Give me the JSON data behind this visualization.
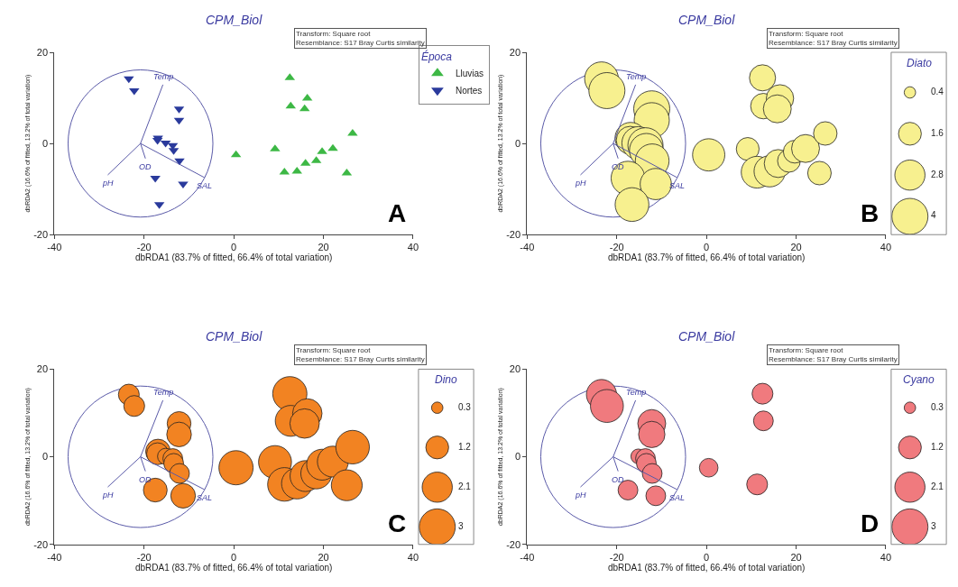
{
  "chart_data": [
    {
      "type": "scatter",
      "title": "CPM_Biol",
      "xlabel": "dbRDA1 (83.7% of fitted, 66.4% of total variation)",
      "ylabel": "dbRDA2 (16.6% of fitted, 13.2% of total variation)",
      "legend_title": "Época",
      "legend": "right",
      "xlim": [
        -40,
        40
      ],
      "xticks": [
        -40,
        -20,
        0,
        20,
        40
      ],
      "ylim": [
        -20,
        20
      ],
      "yticks": [
        -20,
        0,
        20
      ],
      "annotations": [
        "Transform: Square root\nResemblance: S17 Bray Curtis similarity",
        "A",
        {
          "text": "Temp",
          "x": -15.8,
          "y": 12.9
        },
        {
          "text": "pH",
          "x": -28.1,
          "y": -6.9
        },
        {
          "text": "OD",
          "x": -19.7,
          "y": -3.3
        },
        {
          "text": "SAL",
          "x": -6.5,
          "y": -7.5
        }
      ],
      "series": [
        {
          "name": "Lluvias",
          "color": "#3db845",
          "marker": "triangle",
          "x": [
            0.5,
            12.5,
            12.7,
            16.4,
            15.8,
            9.2,
            11.3,
            14.1,
            16.0,
            18.4,
            19.7,
            22.1,
            26.5,
            25.2
          ],
          "values": [
            -2.5,
            14.4,
            8.2,
            9.9,
            7.6,
            -1.2,
            -6.3,
            -6.1,
            -4.4,
            -3.8,
            -1.8,
            -1.1,
            2.2,
            -6.5
          ]
        },
        {
          "name": "Nortes",
          "color": "#2a3a9c",
          "marker": "triangle-down",
          "x": [
            -23.4,
            -22.2,
            -12.2,
            -12.2,
            -16.9,
            -17.0,
            -15.2,
            -13.6,
            -13.4,
            -12.1,
            -17.5,
            -11.3,
            -16.6
          ],
          "values": [
            14.2,
            11.6,
            7.6,
            5.1,
            1.2,
            0.7,
            0.1,
            -0.4,
            -1.5,
            -3.8,
            -7.6,
            -8.9,
            -13.4
          ]
        },
        {
          "type": "line",
          "color": "#5a5aa8",
          "x": [
            -20.8,
            -15.8
          ],
          "values": [
            0,
            12.9
          ]
        },
        {
          "type": "line",
          "color": "#5a5aa8",
          "x": [
            -20.8,
            -28.1
          ],
          "values": [
            0,
            -6.9
          ]
        },
        {
          "type": "line",
          "color": "#5a5aa8",
          "x": [
            -20.8,
            -19.7
          ],
          "values": [
            0,
            -3.3
          ]
        },
        {
          "type": "line",
          "color": "#5a5aa8",
          "x": [
            -20.8,
            -6.5
          ],
          "values": [
            0,
            -7.5
          ]
        }
      ]
    },
    {
      "type": "bubble",
      "title": "CPM_Biol",
      "xlabel": "dbRDA1 (83.7% of fitted, 66.4% of total variation)",
      "ylabel": "dbRDA2 (16.6% of fitted, 13.2% of total variation)",
      "legend_title": "Diato",
      "size_legend": [
        0.4,
        1.6,
        2.8,
        4
      ],
      "xlim": [
        -40,
        40
      ],
      "xticks": [
        -40,
        -20,
        0,
        20,
        40
      ],
      "ylim": [
        -20,
        20
      ],
      "yticks": [
        -20,
        0,
        20
      ],
      "annotations": [
        "Transform: Square root\nResemblance: S17 Bray Curtis similarity",
        "B",
        {
          "text": "Temp",
          "x": -15.8,
          "y": 12.9
        },
        {
          "text": "pH",
          "x": -28.1,
          "y": -6.9
        },
        {
          "text": "OD",
          "x": -19.7,
          "y": -3.3
        },
        {
          "text": "SAL",
          "x": -6.5,
          "y": -7.5
        }
      ],
      "series": [
        {
          "color": "#f7f08f",
          "x": [
            0.5,
            12.5,
            12.7,
            16.4,
            15.8,
            9.2,
            11.3,
            14.1,
            16.0,
            18.4,
            19.7,
            22.1,
            26.5,
            25.2,
            -23.4,
            -22.2,
            -12.2,
            -12.2,
            -16.9,
            -17.0,
            -15.2,
            -13.6,
            -13.4,
            -12.1,
            -17.5,
            -11.3,
            -16.6
          ],
          "values": [
            -2.5,
            14.4,
            8.2,
            9.9,
            7.6,
            -1.2,
            -6.3,
            -6.1,
            -4.4,
            -3.8,
            -1.8,
            -1.1,
            2.2,
            -6.5,
            14.2,
            11.6,
            7.6,
            5.1,
            1.2,
            0.7,
            0.1,
            -0.4,
            -1.5,
            -3.8,
            -7.6,
            -8.9,
            -13.4
          ],
          "sizes": [
            3.2,
            2.1,
            2.0,
            2.3,
            2.4,
            1.6,
            3.1,
            3.0,
            2.4,
            1.6,
            1.6,
            2.4,
            1.7,
            1.7,
            3.5,
            4.0,
            4.0,
            3.8,
            3.0,
            2.4,
            3.3,
            3.8,
            3.5,
            3.5,
            3.5,
            3.0,
            3.5
          ]
        },
        {
          "type": "line",
          "color": "#5a5aa8",
          "x": [
            -20.8,
            -15.8
          ],
          "values": [
            0,
            12.9
          ]
        },
        {
          "type": "line",
          "color": "#5a5aa8",
          "x": [
            -20.8,
            -28.1
          ],
          "values": [
            0,
            -6.9
          ]
        },
        {
          "type": "line",
          "color": "#5a5aa8",
          "x": [
            -20.8,
            -19.7
          ],
          "values": [
            0,
            -3.3
          ]
        },
        {
          "type": "line",
          "color": "#5a5aa8",
          "x": [
            -20.8,
            -6.5
          ],
          "values": [
            0,
            -7.5
          ]
        }
      ]
    },
    {
      "type": "bubble",
      "title": "CPM_Biol",
      "xlabel": "dbRDA1 (83.7% of fitted, 66.4% of total variation)",
      "ylabel": "dbRDA2 (16.6% of fitted, 13.2% of total variation)",
      "legend_title": "Dino",
      "size_legend": [
        0.3,
        1.2,
        2.1,
        3
      ],
      "xlim": [
        -40,
        40
      ],
      "xticks": [
        -40,
        -20,
        0,
        20,
        40
      ],
      "ylim": [
        -20,
        20
      ],
      "yticks": [
        -20,
        0,
        20
      ],
      "annotations": [
        "Transform: Square root\nResemblance: S17 Bray Curtis similarity",
        "C",
        {
          "text": "Temp",
          "x": -15.8,
          "y": 12.9
        },
        {
          "text": "pH",
          "x": -28.1,
          "y": -6.9
        },
        {
          "text": "OD",
          "x": -19.7,
          "y": -3.3
        },
        {
          "text": "SAL",
          "x": -6.5,
          "y": -7.5
        }
      ],
      "series": [
        {
          "color": "#f28322",
          "x": [
            0.5,
            12.5,
            12.7,
            16.4,
            15.8,
            9.2,
            11.3,
            14.1,
            16.0,
            18.4,
            19.7,
            22.1,
            26.5,
            25.2,
            -23.4,
            -22.2,
            -12.2,
            -12.2,
            -16.9,
            -17.0,
            -15.2,
            -13.6,
            -13.4,
            -12.1,
            -17.5,
            -11.3
          ],
          "values": [
            -2.5,
            14.4,
            8.2,
            9.9,
            7.6,
            -1.2,
            -6.3,
            -6.1,
            -4.4,
            -3.8,
            -1.8,
            -1.1,
            2.2,
            -6.5,
            14.2,
            11.6,
            7.6,
            5.1,
            1.2,
            0.7,
            0.1,
            -0.4,
            -1.5,
            -3.8,
            -7.6,
            -8.9
          ],
          "sizes": [
            2.7,
            2.7,
            2.2,
            2.0,
            2.0,
            2.5,
            2.6,
            2.2,
            2.2,
            2.2,
            2.2,
            2.2,
            2.6,
            2.2,
            1.0,
            1.0,
            1.3,
            1.4,
            1.4,
            1.1,
            0.6,
            0.9,
            0.9,
            0.9,
            1.3,
            1.4
          ]
        },
        {
          "type": "line",
          "color": "#5a5aa8",
          "x": [
            -20.8,
            -15.8
          ],
          "values": [
            0,
            12.9
          ]
        },
        {
          "type": "line",
          "color": "#5a5aa8",
          "x": [
            -20.8,
            -28.1
          ],
          "values": [
            0,
            -6.9
          ]
        },
        {
          "type": "line",
          "color": "#5a5aa8",
          "x": [
            -20.8,
            -19.7
          ],
          "values": [
            0,
            -3.3
          ]
        },
        {
          "type": "line",
          "color": "#5a5aa8",
          "x": [
            -20.8,
            -6.5
          ],
          "values": [
            0,
            -7.5
          ]
        }
      ]
    },
    {
      "type": "bubble",
      "title": "CPM_Biol",
      "xlabel": "dbRDA1 (83.7% of fitted, 66.4% of total variation)",
      "ylabel": "dbRDA2 (16.6% of fitted, 13.2% of total variation)",
      "legend_title": "Cyano",
      "size_legend": [
        0.3,
        1.2,
        2.1,
        3
      ],
      "xlim": [
        -40,
        40
      ],
      "xticks": [
        -40,
        -20,
        0,
        20,
        40
      ],
      "ylim": [
        -20,
        20
      ],
      "yticks": [
        -20,
        0,
        20
      ],
      "annotations": [
        "Transform: Square root\nResemblance: S17 Bray Curtis similarity",
        "D",
        {
          "text": "Temp",
          "x": -15.8,
          "y": 12.9
        },
        {
          "text": "pH",
          "x": -28.1,
          "y": -6.9
        },
        {
          "text": "OD",
          "x": -19.7,
          "y": -3.3
        },
        {
          "text": "SAL",
          "x": -6.5,
          "y": -7.5
        }
      ],
      "series": [
        {
          "color": "#f07a7e",
          "x": [
            0.5,
            12.5,
            12.7,
            11.3,
            -23.4,
            -22.2,
            -12.2,
            -12.2,
            -15.2,
            -13.6,
            -13.4,
            -12.1,
            -17.5,
            -11.3
          ],
          "values": [
            -2.5,
            14.4,
            8.2,
            -6.3,
            14.2,
            11.6,
            7.6,
            5.1,
            0.1,
            -0.4,
            -1.5,
            -3.8,
            -7.6,
            -8.9
          ],
          "sizes": [
            0.8,
            1.0,
            0.9,
            1.0,
            2.1,
            2.5,
            1.8,
            1.6,
            0.5,
            0.9,
            0.9,
            0.9,
            0.9,
            0.9
          ]
        },
        {
          "type": "line",
          "color": "#5a5aa8",
          "x": [
            -20.8,
            -15.8
          ],
          "values": [
            0,
            12.9
          ]
        },
        {
          "type": "line",
          "color": "#5a5aa8",
          "x": [
            -20.8,
            -28.1
          ],
          "values": [
            0,
            -6.9
          ]
        },
        {
          "type": "line",
          "color": "#5a5aa8",
          "x": [
            -20.8,
            -19.7
          ],
          "values": [
            0,
            -3.3
          ]
        },
        {
          "type": "line",
          "color": "#5a5aa8",
          "x": [
            -20.8,
            -6.5
          ],
          "values": [
            0,
            -7.5
          ]
        }
      ]
    }
  ]
}
